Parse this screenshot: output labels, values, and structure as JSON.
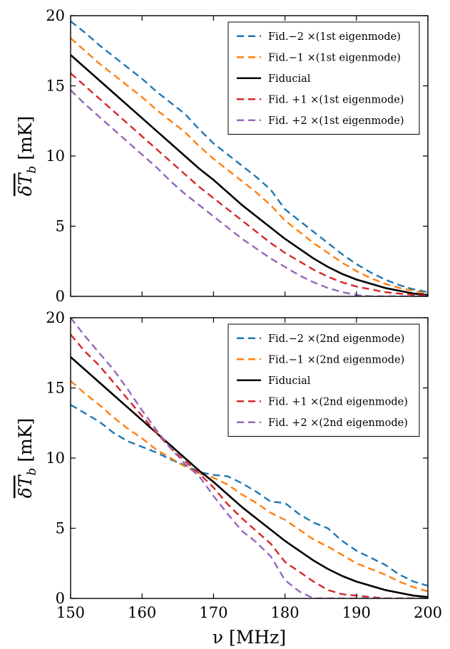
{
  "chart_data": [
    {
      "type": "line",
      "xlim": [
        150,
        200
      ],
      "ylim": [
        0,
        20
      ],
      "xticks": [
        150,
        160,
        170,
        180,
        190,
        200
      ],
      "yticks": [
        0,
        5,
        10,
        15,
        20
      ],
      "show_xtick_labels": false,
      "ylabel": "δT̄_b [mK]",
      "ylabel_parts": {
        "main": "δT",
        "sub": "b",
        "unit": "[mK]"
      },
      "legend_position": "top-right",
      "grid": false,
      "series": [
        {
          "name": "Fid.−2 ×(1st eigenmode)",
          "style": "dashed",
          "color": "#1f77b4",
          "x": [
            150,
            152,
            154,
            156,
            158,
            160,
            162,
            164,
            166,
            168,
            170,
            172,
            174,
            176,
            178,
            180,
            182,
            184,
            186,
            188,
            190,
            192,
            194,
            196,
            198,
            200
          ],
          "y": [
            19.6,
            18.8,
            17.9,
            17.1,
            16.3,
            15.5,
            14.6,
            13.8,
            13.0,
            11.9,
            10.9,
            10.1,
            9.3,
            8.5,
            7.6,
            6.2,
            5.4,
            4.6,
            3.8,
            3.0,
            2.3,
            1.7,
            1.2,
            0.8,
            0.5,
            0.3
          ]
        },
        {
          "name": "Fid.−1 ×(1st eigenmode)",
          "style": "dashed",
          "color": "#ff7f0e",
          "x": [
            150,
            152,
            154,
            156,
            158,
            160,
            162,
            164,
            166,
            168,
            170,
            172,
            174,
            176,
            178,
            180,
            182,
            184,
            186,
            188,
            190,
            192,
            194,
            196,
            198,
            200
          ],
          "y": [
            18.4,
            17.5,
            16.6,
            15.8,
            15.0,
            14.2,
            13.3,
            12.5,
            11.7,
            10.7,
            9.8,
            9.0,
            8.2,
            7.4,
            6.5,
            5.4,
            4.6,
            3.8,
            3.1,
            2.4,
            1.8,
            1.3,
            0.9,
            0.6,
            0.4,
            0.2
          ]
        },
        {
          "name": "Fiducial",
          "style": "solid",
          "color": "#000000",
          "x": [
            150,
            152,
            154,
            156,
            158,
            160,
            162,
            164,
            166,
            168,
            170,
            172,
            174,
            176,
            178,
            180,
            182,
            184,
            186,
            188,
            190,
            192,
            194,
            196,
            198,
            200
          ],
          "y": [
            17.2,
            16.3,
            15.4,
            14.5,
            13.6,
            12.7,
            11.8,
            10.9,
            10.0,
            9.1,
            8.3,
            7.4,
            6.5,
            5.7,
            4.9,
            4.1,
            3.4,
            2.7,
            2.1,
            1.6,
            1.2,
            0.9,
            0.6,
            0.4,
            0.2,
            0.1
          ]
        },
        {
          "name": "Fid. +1 ×(1st eigenmode)",
          "style": "dashed",
          "color": "#d62728",
          "x": [
            150,
            152,
            154,
            156,
            158,
            160,
            162,
            164,
            166,
            168,
            170,
            172,
            174,
            176,
            178,
            180,
            182,
            184,
            186,
            188,
            190,
            192,
            194,
            196,
            198,
            200
          ],
          "y": [
            15.9,
            15.0,
            14.1,
            13.2,
            12.3,
            11.4,
            10.5,
            9.6,
            8.7,
            7.8,
            7.0,
            6.2,
            5.4,
            4.6,
            3.8,
            3.1,
            2.5,
            1.9,
            1.4,
            1.0,
            0.7,
            0.5,
            0.3,
            0.2,
            0.1,
            0.05
          ]
        },
        {
          "name": "Fid. +2 ×(1st eigenmode)",
          "style": "dashed",
          "color": "#9467bd",
          "x": [
            150,
            152,
            154,
            156,
            158,
            160,
            162,
            164,
            166,
            168,
            170,
            172,
            174,
            176,
            178,
            180,
            182,
            184,
            186,
            188,
            190,
            192,
            194,
            196,
            198,
            200
          ],
          "y": [
            14.7,
            13.7,
            12.8,
            11.9,
            11.0,
            10.1,
            9.2,
            8.2,
            7.3,
            6.5,
            5.7,
            4.9,
            4.1,
            3.4,
            2.7,
            2.1,
            1.5,
            1.0,
            0.6,
            0.3,
            0.1,
            0.0,
            0.0,
            0.0,
            0.0,
            0.0
          ]
        }
      ]
    },
    {
      "type": "line",
      "xlim": [
        150,
        200
      ],
      "ylim": [
        0,
        20
      ],
      "xticks": [
        150,
        160,
        170,
        180,
        190,
        200
      ],
      "yticks": [
        0,
        5,
        10,
        15,
        20
      ],
      "show_xtick_labels": true,
      "xlabel": "ν [MHz]",
      "ylabel": "δT̄_b [mK]",
      "ylabel_parts": {
        "main": "δT",
        "sub": "b",
        "unit": "[mK]"
      },
      "legend_position": "top-right",
      "grid": false,
      "series": [
        {
          "name": "Fid.−2 ×(2nd eigenmode)",
          "style": "dashed",
          "color": "#1f77b4",
          "x": [
            150,
            152,
            154,
            156,
            158,
            160,
            162,
            164,
            166,
            168,
            170,
            172,
            174,
            176,
            178,
            180,
            182,
            184,
            186,
            188,
            190,
            192,
            194,
            196,
            198,
            200
          ],
          "y": [
            13.8,
            13.2,
            12.6,
            11.8,
            11.2,
            10.8,
            10.4,
            9.9,
            9.5,
            9.0,
            8.8,
            8.7,
            8.2,
            7.6,
            6.9,
            6.8,
            6.0,
            5.4,
            5.0,
            4.1,
            3.4,
            2.9,
            2.4,
            1.7,
            1.2,
            0.9
          ]
        },
        {
          "name": "Fid.−1 ×(2nd eigenmode)",
          "style": "dashed",
          "color": "#ff7f0e",
          "x": [
            150,
            152,
            154,
            156,
            158,
            160,
            162,
            164,
            166,
            168,
            170,
            172,
            174,
            176,
            178,
            180,
            182,
            184,
            186,
            188,
            190,
            192,
            194,
            196,
            198,
            200
          ],
          "y": [
            15.5,
            14.6,
            13.8,
            12.9,
            12.1,
            11.4,
            10.6,
            10.0,
            9.4,
            8.9,
            8.6,
            8.1,
            7.4,
            6.8,
            6.1,
            5.6,
            4.9,
            4.2,
            3.7,
            3.1,
            2.5,
            2.1,
            1.7,
            1.2,
            0.8,
            0.5
          ]
        },
        {
          "name": "Fiducial",
          "style": "solid",
          "color": "#000000",
          "x": [
            150,
            152,
            154,
            156,
            158,
            160,
            162,
            164,
            166,
            168,
            170,
            172,
            174,
            176,
            178,
            180,
            182,
            184,
            186,
            188,
            190,
            192,
            194,
            196,
            198,
            200
          ],
          "y": [
            17.2,
            16.3,
            15.4,
            14.5,
            13.6,
            12.7,
            11.8,
            10.9,
            10.0,
            9.1,
            8.3,
            7.4,
            6.5,
            5.7,
            4.9,
            4.1,
            3.4,
            2.7,
            2.1,
            1.6,
            1.2,
            0.9,
            0.6,
            0.4,
            0.2,
            0.1
          ]
        },
        {
          "name": "Fid. +1 ×(2nd eigenmode)",
          "style": "dashed",
          "color": "#d62728",
          "x": [
            150,
            152,
            154,
            156,
            158,
            160,
            162,
            164,
            166,
            168,
            170,
            172,
            174,
            176,
            178,
            180,
            182,
            184,
            186,
            188,
            190,
            192,
            194,
            196,
            198,
            200
          ],
          "y": [
            18.8,
            17.6,
            16.6,
            15.4,
            14.2,
            13.0,
            11.8,
            10.7,
            9.8,
            8.9,
            7.9,
            6.7,
            5.7,
            4.8,
            3.9,
            2.6,
            1.9,
            1.2,
            0.6,
            0.3,
            0.2,
            0.1,
            0.0,
            0.0,
            0.0,
            0.0
          ]
        },
        {
          "name": "Fid. +2 ×(2nd eigenmode)",
          "style": "dashed",
          "color": "#9467bd",
          "x": [
            150,
            152,
            154,
            156,
            158,
            160,
            162,
            164,
            166,
            168,
            170,
            172,
            174,
            176,
            178,
            180,
            182,
            184,
            186,
            188,
            190,
            192,
            194,
            196,
            198,
            200
          ],
          "y": [
            20.0,
            18.7,
            17.5,
            16.3,
            14.9,
            13.4,
            12.0,
            10.7,
            9.6,
            8.7,
            7.3,
            6.0,
            4.8,
            4.0,
            3.0,
            1.3,
            0.5,
            0.0,
            0.0,
            0.0,
            0.0,
            0.0,
            0.0,
            0.0,
            0.0,
            0.0
          ]
        }
      ]
    }
  ]
}
